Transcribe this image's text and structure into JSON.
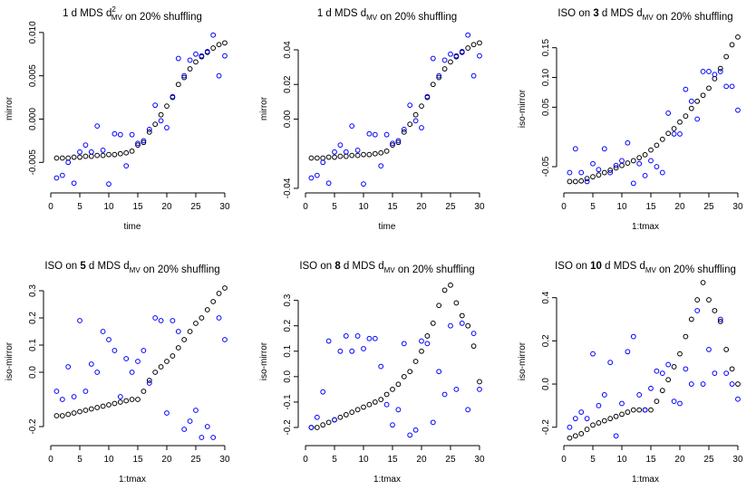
{
  "chart_data": [
    {
      "type": "scatter",
      "title": [
        {
          "text": "1 d MDS d"
        },
        {
          "sup": "2"
        },
        {
          "sub": "MV"
        },
        {
          "text": " on 20% shuffling"
        }
      ],
      "xlabel": "time",
      "ylabel": "mirror",
      "x": [
        1,
        2,
        3,
        4,
        5,
        6,
        7,
        8,
        9,
        10,
        11,
        12,
        13,
        14,
        15,
        16,
        17,
        18,
        19,
        20,
        21,
        22,
        23,
        24,
        25,
        26,
        27,
        28,
        29,
        30
      ],
      "xlim": [
        -0.16,
        31.16
      ],
      "xticks": [
        0,
        5,
        10,
        15,
        20,
        25,
        30
      ],
      "ylim": [
        -0.0079,
        0.0103
      ],
      "yticks": [
        -0.005,
        {
          "value": 0,
          "label": "0.000"
        },
        0.005,
        {
          "value": 0.01,
          "label": "0.010"
        }
      ],
      "series": [
        {
          "color": "#000000",
          "values": [
            -0.0045,
            -0.0045,
            -0.0045,
            -0.0044,
            -0.0044,
            -0.0043,
            -0.0043,
            -0.0042,
            -0.0042,
            -0.0041,
            -0.0041,
            -0.004,
            -0.0039,
            -0.0037,
            -0.003,
            -0.0027,
            -0.0015,
            -0.0006,
            0.0005,
            0.0015,
            0.0025,
            0.004,
            0.0048,
            0.0058,
            0.0066,
            0.0072,
            0.0077,
            0.0082,
            0.0086,
            0.0088
          ]
        },
        {
          "color": "#0000ff",
          "values": [
            -0.0068,
            -0.0065,
            -0.005,
            -0.0074,
            -0.0038,
            -0.003,
            -0.0038,
            -0.0008,
            -0.0036,
            -0.0075,
            -0.0017,
            -0.0018,
            -0.0054,
            -0.0018,
            -0.0028,
            -0.0025,
            -0.0012,
            0.0016,
            -0.0002,
            -0.001,
            0.0026,
            0.007,
            0.005,
            0.0068,
            0.0075,
            0.0073,
            0.0078,
            0.0097,
            0.005,
            0.0073
          ]
        }
      ]
    },
    {
      "type": "scatter",
      "title": [
        {
          "text": "1 d MDS d"
        },
        {
          "sub": "MV"
        },
        {
          "text": " on 20% shuffling"
        }
      ],
      "xlabel": "time",
      "ylabel": "mirror",
      "x": [
        1,
        2,
        3,
        4,
        5,
        6,
        7,
        8,
        9,
        10,
        11,
        12,
        13,
        14,
        15,
        16,
        17,
        18,
        19,
        20,
        21,
        22,
        23,
        24,
        25,
        26,
        27,
        28,
        29,
        30
      ],
      "xlim": [
        -0.16,
        31.16
      ],
      "xticks": [
        0,
        5,
        10,
        15,
        20,
        25,
        30
      ],
      "ylim": [
        -0.0395,
        0.0515
      ],
      "yticks": [
        -0.04,
        {
          "value": 0,
          "label": "0.00"
        },
        0.02,
        0.04
      ],
      "series": [
        {
          "color": "#000000",
          "values": [
            -0.0225,
            -0.0225,
            -0.0225,
            -0.022,
            -0.022,
            -0.0215,
            -0.0215,
            -0.021,
            -0.021,
            -0.0205,
            -0.0205,
            -0.02,
            -0.0195,
            -0.0185,
            -0.015,
            -0.0135,
            -0.0075,
            -0.003,
            0.0025,
            0.0075,
            0.0125,
            0.02,
            0.024,
            0.029,
            0.033,
            0.036,
            0.0385,
            0.041,
            0.043,
            0.044
          ]
        },
        {
          "color": "#0000ff",
          "values": [
            -0.034,
            -0.0325,
            -0.025,
            -0.037,
            -0.019,
            -0.015,
            -0.019,
            -0.004,
            -0.018,
            -0.0375,
            -0.0085,
            -0.009,
            -0.027,
            -0.009,
            -0.014,
            -0.0125,
            -0.006,
            0.008,
            -0.001,
            -0.005,
            0.013,
            0.035,
            0.025,
            0.034,
            0.0375,
            0.0365,
            0.039,
            0.0485,
            0.025,
            0.0365
          ]
        }
      ]
    },
    {
      "type": "scatter",
      "title": [
        {
          "text": "ISO on "
        },
        {
          "bold": "3"
        },
        {
          "text": " d MDS d"
        },
        {
          "sub": "MV"
        },
        {
          "text": " on 20% shuffling"
        }
      ],
      "xlabel": "1:tmax",
      "ylabel": "iso-mirror",
      "x": [
        1,
        2,
        3,
        4,
        5,
        6,
        7,
        8,
        9,
        10,
        11,
        12,
        13,
        14,
        15,
        16,
        17,
        18,
        19,
        20,
        21,
        22,
        23,
        24,
        25,
        26,
        27,
        28,
        29,
        30
      ],
      "xlim": [
        -0.16,
        31.16
      ],
      "xticks": [
        0,
        5,
        10,
        15,
        20,
        25,
        30
      ],
      "ylim": [
        -0.085,
        0.18
      ],
      "yticks": [
        -0.05,
        0.05,
        {
          "value": 0.1,
          "label": "0.10"
        },
        0.15
      ],
      "series": [
        {
          "color": "#000000",
          "values": [
            -0.075,
            -0.075,
            -0.074,
            -0.07,
            -0.067,
            -0.064,
            -0.06,
            -0.056,
            -0.052,
            -0.048,
            -0.044,
            -0.04,
            -0.035,
            -0.03,
            -0.022,
            -0.014,
            -0.004,
            0.006,
            0.014,
            0.025,
            0.035,
            0.048,
            0.06,
            0.07,
            0.082,
            0.098,
            0.115,
            0.135,
            0.155,
            0.168
          ]
        },
        {
          "color": "#0000ff",
          "values": [
            -0.06,
            -0.02,
            -0.06,
            -0.075,
            -0.045,
            -0.055,
            -0.02,
            -0.06,
            -0.048,
            -0.04,
            -0.01,
            -0.078,
            -0.045,
            -0.065,
            -0.04,
            -0.05,
            -0.06,
            0.04,
            0.005,
            0.005,
            0.08,
            0.06,
            0.03,
            0.11,
            0.11,
            0.105,
            0.11,
            0.085,
            0.085,
            0.045
          ]
        }
      ]
    },
    {
      "type": "scatter",
      "title": [
        {
          "text": "ISO on "
        },
        {
          "bold": "5"
        },
        {
          "text": " d MDS d"
        },
        {
          "sub": "MV"
        },
        {
          "text": " on 20% shuffling"
        }
      ],
      "xlabel": "1:tmax",
      "ylabel": "iso-mirror",
      "x": [
        1,
        2,
        3,
        4,
        5,
        6,
        7,
        8,
        9,
        10,
        11,
        12,
        13,
        14,
        15,
        16,
        17,
        18,
        19,
        20,
        21,
        22,
        23,
        24,
        25,
        26,
        27,
        28,
        29,
        30
      ],
      "xlim": [
        -0.16,
        31.16
      ],
      "xticks": [
        0,
        5,
        10,
        15,
        20,
        25,
        30
      ],
      "ylim": [
        -0.25,
        0.33
      ],
      "yticks": [
        -0.2,
        {
          "value": 0,
          "label": "0.0"
        },
        0.1,
        0.2,
        0.3
      ],
      "series": [
        {
          "color": "#000000",
          "values": [
            -0.16,
            -0.16,
            -0.155,
            -0.15,
            -0.145,
            -0.14,
            -0.135,
            -0.13,
            -0.125,
            -0.12,
            -0.115,
            -0.11,
            -0.105,
            -0.1,
            -0.1,
            -0.07,
            -0.03,
            0.0,
            0.02,
            0.04,
            0.06,
            0.09,
            0.12,
            0.15,
            0.18,
            0.2,
            0.23,
            0.26,
            0.29,
            0.31
          ]
        },
        {
          "color": "#0000ff",
          "values": [
            -0.07,
            -0.1,
            0.02,
            -0.09,
            0.19,
            -0.07,
            0.03,
            0.0,
            0.15,
            0.12,
            0.08,
            -0.09,
            0.05,
            0.0,
            0.04,
            0.08,
            -0.04,
            0.2,
            0.19,
            -0.15,
            0.19,
            0.15,
            -0.21,
            -0.18,
            -0.14,
            -0.24,
            -0.2,
            -0.24,
            0.2,
            0.12
          ]
        }
      ]
    },
    {
      "type": "scatter",
      "title": [
        {
          "text": "ISO on "
        },
        {
          "bold": "8"
        },
        {
          "text": " d MDS d"
        },
        {
          "sub": "MV"
        },
        {
          "text": " on 20% shuffling"
        }
      ],
      "xlabel": "1:tmax",
      "ylabel": "iso-mirror",
      "x": [
        1,
        2,
        3,
        4,
        5,
        6,
        7,
        8,
        9,
        10,
        11,
        12,
        13,
        14,
        15,
        16,
        17,
        18,
        19,
        20,
        21,
        22,
        23,
        24,
        25,
        26,
        27,
        28,
        29,
        30
      ],
      "xlim": [
        -0.16,
        31.16
      ],
      "xticks": [
        0,
        5,
        10,
        15,
        20,
        25,
        30
      ],
      "ylim": [
        -0.25,
        0.37
      ],
      "yticks": [
        -0.2,
        -0.1,
        {
          "value": 0,
          "label": "0.0"
        },
        0.1,
        0.2,
        0.3
      ],
      "series": [
        {
          "color": "#000000",
          "values": [
            -0.2,
            -0.2,
            -0.19,
            -0.18,
            -0.17,
            -0.16,
            -0.15,
            -0.14,
            -0.13,
            -0.12,
            -0.11,
            -0.1,
            -0.09,
            -0.07,
            -0.05,
            -0.03,
            0.0,
            0.02,
            0.06,
            0.1,
            0.16,
            0.21,
            0.28,
            0.34,
            0.36,
            0.29,
            0.24,
            0.2,
            0.12,
            -0.02
          ]
        },
        {
          "color": "#0000ff",
          "values": [
            -0.2,
            -0.16,
            -0.06,
            0.14,
            -0.17,
            0.1,
            0.16,
            0.1,
            0.16,
            0.11,
            0.15,
            0.15,
            0.04,
            -0.11,
            -0.19,
            -0.13,
            0.13,
            -0.23,
            -0.21,
            0.14,
            0.13,
            -0.18,
            0.02,
            -0.07,
            0.2,
            -0.05,
            0.21,
            -0.13,
            0.17,
            -0.05
          ]
        }
      ]
    },
    {
      "type": "scatter",
      "title": [
        {
          "text": "ISO on "
        },
        {
          "bold": "10"
        },
        {
          "text": " d MDS d"
        },
        {
          "sub": "MV"
        },
        {
          "text": " on 20% shuffling"
        }
      ],
      "xlabel": "1:tmax",
      "ylabel": "iso-mirror",
      "x": [
        1,
        2,
        3,
        4,
        5,
        6,
        7,
        8,
        9,
        10,
        11,
        12,
        13,
        14,
        15,
        16,
        17,
        18,
        19,
        20,
        21,
        22,
        23,
        24,
        25,
        26,
        27,
        28,
        29,
        30
      ],
      "xlim": [
        -0.16,
        31.16
      ],
      "xticks": [
        0,
        5,
        10,
        15,
        20,
        25,
        30
      ],
      "ylim": [
        -0.26,
        0.47
      ],
      "yticks": [
        -0.2,
        {
          "value": 0,
          "label": "0.0"
        },
        0.2,
        0.4
      ],
      "series": [
        {
          "color": "#000000",
          "values": [
            -0.25,
            -0.24,
            -0.23,
            -0.21,
            -0.19,
            -0.18,
            -0.17,
            -0.16,
            -0.15,
            -0.14,
            -0.13,
            -0.12,
            -0.12,
            -0.12,
            -0.12,
            -0.08,
            -0.03,
            0.02,
            0.08,
            0.14,
            0.22,
            0.3,
            0.39,
            0.47,
            0.39,
            0.34,
            0.29,
            0.16,
            0.07,
            0.0
          ]
        },
        {
          "color": "#0000ff",
          "values": [
            -0.2,
            -0.16,
            -0.13,
            -0.16,
            0.14,
            -0.1,
            -0.05,
            0.1,
            -0.24,
            -0.09,
            0.15,
            0.22,
            -0.05,
            -0.12,
            -0.02,
            0.06,
            0.05,
            0.09,
            -0.08,
            -0.09,
            0.07,
            0.0,
            0.34,
            0.0,
            0.16,
            0.05,
            0.3,
            0.05,
            0.0,
            -0.07
          ]
        }
      ]
    }
  ]
}
